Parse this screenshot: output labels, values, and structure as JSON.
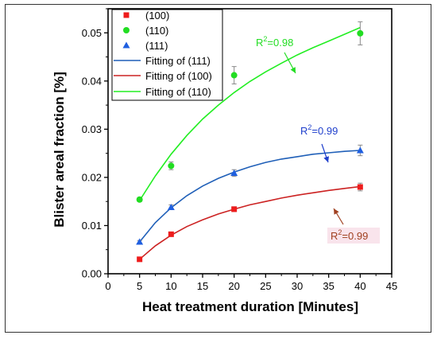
{
  "chart_data": {
    "type": "scatter",
    "xlabel": "Heat treatment duration [Minutes]",
    "ylabel": "Blister areal fraction [%]",
    "xlim": [
      0,
      45
    ],
    "ylim": [
      0,
      0.055
    ],
    "xticks": [
      "0",
      "5",
      "10",
      "15",
      "20",
      "25",
      "30",
      "35",
      "40",
      "45"
    ],
    "yticks": [
      "0.00",
      "0.01",
      "0.02",
      "0.03",
      "0.04",
      "0.05"
    ],
    "grid": false,
    "legend_position": "top-left",
    "series": [
      {
        "name": "(100)",
        "marker": "square",
        "color": "#ee1c1c",
        "x": [
          5,
          10,
          20,
          40
        ],
        "y": [
          0.003,
          0.0082,
          0.0134,
          0.018
        ],
        "err": [
          0.0003,
          0.0004,
          0.0005,
          0.0008
        ]
      },
      {
        "name": "(110)",
        "marker": "circle",
        "color": "#22dd22",
        "x": [
          5,
          10,
          20,
          40
        ],
        "y": [
          0.0154,
          0.0224,
          0.0412,
          0.0499
        ],
        "err": [
          0.0004,
          0.0008,
          0.0018,
          0.0024
        ]
      },
      {
        "name": "(111)",
        "marker": "triangle",
        "color": "#1f5fe0",
        "x": [
          5,
          10,
          20,
          40
        ],
        "y": [
          0.0066,
          0.0138,
          0.0209,
          0.0256
        ],
        "err": [
          0.0003,
          0.0005,
          0.0007,
          0.0011
        ]
      }
    ],
    "fits": [
      {
        "name": "Fitting of (111)",
        "color": "#1f5fb8",
        "x": [
          5,
          7.5,
          10,
          12.5,
          15,
          17.5,
          20,
          22.5,
          25,
          27.5,
          30,
          32.5,
          35,
          37.5,
          40
        ],
        "y": [
          0.0066,
          0.0106,
          0.0137,
          0.0162,
          0.0182,
          0.0198,
          0.0211,
          0.0222,
          0.0231,
          0.0238,
          0.0243,
          0.0248,
          0.0251,
          0.0254,
          0.0256
        ]
      },
      {
        "name": "Fitting of (100)",
        "color": "#cc2222",
        "x": [
          5,
          7.5,
          10,
          12.5,
          15,
          17.5,
          20,
          22.5,
          25,
          27.5,
          30,
          32.5,
          35,
          37.5,
          40
        ],
        "y": [
          0.003,
          0.0058,
          0.008,
          0.0098,
          0.0112,
          0.0124,
          0.0134,
          0.0143,
          0.015,
          0.0157,
          0.0163,
          0.0168,
          0.0173,
          0.0177,
          0.0181
        ]
      },
      {
        "name": "Fitting of (110)",
        "color": "#22ee22",
        "x": [
          5,
          7.5,
          10,
          12.5,
          15,
          17.5,
          20,
          22.5,
          25,
          27.5,
          30,
          32.5,
          35,
          37.5,
          40
        ],
        "y": [
          0.0152,
          0.0203,
          0.0248,
          0.0287,
          0.0321,
          0.035,
          0.0376,
          0.0399,
          0.0419,
          0.0437,
          0.0454,
          0.0469,
          0.0483,
          0.0497,
          0.0511
        ]
      }
    ],
    "annotations": [
      {
        "label_base": "R",
        "label_sup": "2",
        "label_rest": "=0.98",
        "color": "#22dd22",
        "points_to": "Fitting of (110)"
      },
      {
        "label_base": "R",
        "label_sup": "2",
        "label_rest": "=0.99",
        "color": "#1f3fcc",
        "points_to": "Fitting of (111)"
      },
      {
        "label_base": "R",
        "label_sup": "2",
        "label_rest": "=0.99",
        "color": "#a04020",
        "points_to": "Fitting of (100)"
      }
    ]
  }
}
